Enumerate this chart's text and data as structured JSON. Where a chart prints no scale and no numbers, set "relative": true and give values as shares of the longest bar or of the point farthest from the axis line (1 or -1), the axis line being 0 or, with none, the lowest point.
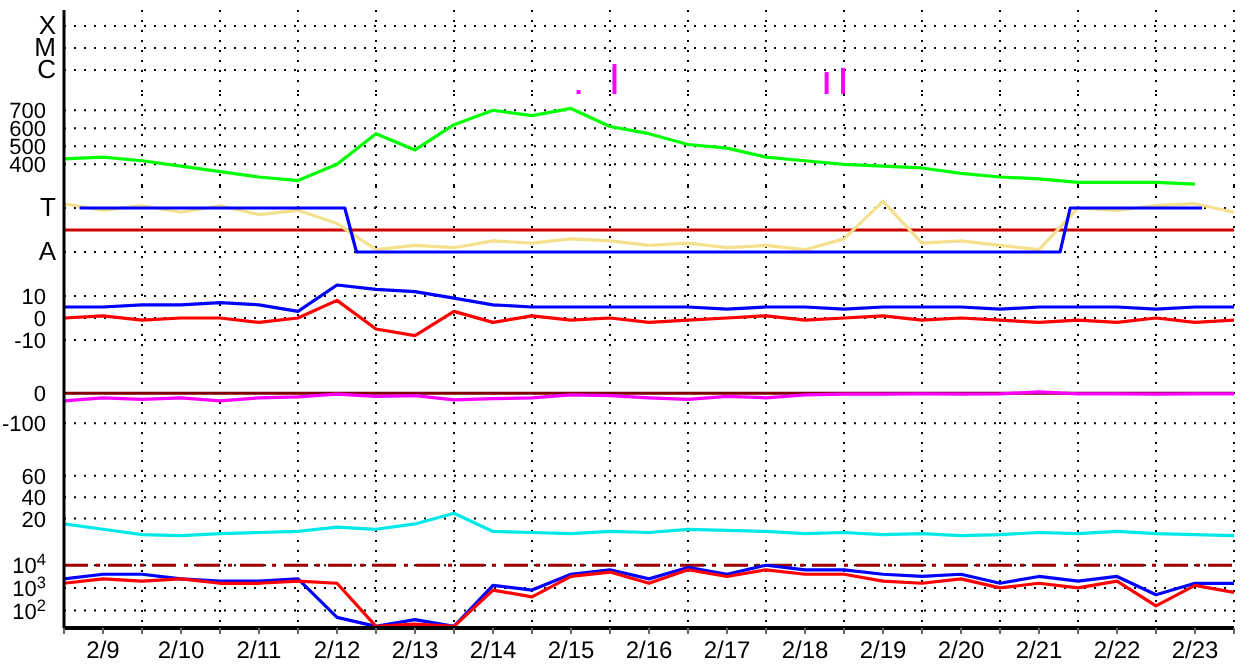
{
  "chart_data": [
    {
      "type": "bar",
      "relative": true,
      "annotations": [
        "X",
        "M",
        "C"
      ],
      "x": [
        "--02-15T14:24",
        "--02-16T01:26",
        "--02-18T18:43",
        "--02-18T23:46"
      ],
      "series": [
        {
          "color": "#ff00ff",
          "values": [
            0.13,
            1,
            0.73,
            0.87
          ]
        }
      ],
      "xlim": [
        "--02-09",
        "--02-24"
      ],
      "xticks": [
        {
          "value": "--02-09",
          "label": null
        },
        {
          "value": "--02-09T12:00",
          "label": "2/9"
        },
        {
          "value": "--02-10",
          "label": null
        },
        {
          "value": "--02-10T12:00",
          "label": "2/10"
        },
        {
          "value": "--02-11",
          "label": null
        },
        {
          "value": "--02-11T12:00",
          "label": "2/11"
        },
        {
          "value": "--02-12",
          "label": null
        },
        {
          "value": "--02-12T12:00",
          "label": "2/12"
        },
        {
          "value": "--02-13",
          "label": null
        },
        {
          "value": "--02-13T12:00",
          "label": "2/13"
        },
        {
          "value": "--02-14",
          "label": null
        },
        {
          "value": "--02-14T12:00",
          "label": "2/14"
        },
        {
          "value": "--02-15",
          "label": null
        },
        {
          "value": "--02-15T12:00",
          "label": "2/15"
        },
        {
          "value": "--02-16",
          "label": null
        },
        {
          "value": "--02-16T12:00",
          "label": "2/16"
        },
        {
          "value": "--02-17",
          "label": null
        },
        {
          "value": "--02-17T12:00",
          "label": "2/17"
        },
        {
          "value": "--02-18",
          "label": null
        },
        {
          "value": "--02-18T12:00",
          "label": "2/18"
        },
        {
          "value": "--02-19",
          "label": null
        },
        {
          "value": "--02-19T12:00",
          "label": "2/19"
        },
        {
          "value": "--02-20",
          "label": null
        },
        {
          "value": "--02-20T12:00",
          "label": "2/20"
        },
        {
          "value": "--02-21",
          "label": null
        },
        {
          "value": "--02-21T12:00",
          "label": "2/21"
        },
        {
          "value": "--02-22",
          "label": null
        },
        {
          "value": "--02-22T12:00",
          "label": "2/22"
        },
        {
          "value": "--02-23",
          "label": null
        },
        {
          "value": "--02-23T12:00",
          "label": "2/23"
        },
        {
          "value": "--02-24",
          "label": null
        }
      ],
      "grid": true,
      "tick_labels": "y"
    },
    {
      "type": "line",
      "x": [
        "--02-09",
        "--02-09T12:00",
        "--02-10",
        "--02-10T12:00",
        "--02-11",
        "--02-11T12:00",
        "--02-12",
        "--02-12T12:00",
        "--02-13",
        "--02-13T12:00",
        "--02-14",
        "--02-14T12:00",
        "--02-15",
        "--02-15T12:00",
        "--02-16",
        "--02-16T12:00",
        "--02-17",
        "--02-17T12:00",
        "--02-18",
        "--02-18T12:00",
        "--02-19",
        "--02-19T12:00",
        "--02-20",
        "--02-20T12:00",
        "--02-21",
        "--02-21T12:00",
        "--02-22",
        "--02-22T12:00",
        "--02-23",
        "--02-23T12:00"
      ],
      "series": [
        {
          "color": "#00ff00",
          "values": [
            430,
            440,
            420,
            390,
            360,
            330,
            310,
            400,
            570,
            480,
            620,
            700,
            670,
            710,
            610,
            570,
            510,
            490,
            440,
            420,
            400,
            390,
            380,
            350,
            330,
            320,
            300,
            300,
            300,
            290
          ]
        }
      ],
      "ylim": [
        280,
        790
      ],
      "yticks": [
        400,
        500,
        600,
        700
      ],
      "xlim": [
        "--02-09",
        "--02-24"
      ],
      "xticks": [
        {
          "value": "--02-09",
          "label": null
        },
        {
          "value": "--02-09T12:00",
          "label": "2/9"
        },
        {
          "value": "--02-10",
          "label": null
        },
        {
          "value": "--02-10T12:00",
          "label": "2/10"
        },
        {
          "value": "--02-11",
          "label": null
        },
        {
          "value": "--02-11T12:00",
          "label": "2/11"
        },
        {
          "value": "--02-12",
          "label": null
        },
        {
          "value": "--02-12T12:00",
          "label": "2/12"
        },
        {
          "value": "--02-13",
          "label": null
        },
        {
          "value": "--02-13T12:00",
          "label": "2/13"
        },
        {
          "value": "--02-14",
          "label": null
        },
        {
          "value": "--02-14T12:00",
          "label": "2/14"
        },
        {
          "value": "--02-15",
          "label": null
        },
        {
          "value": "--02-15T12:00",
          "label": "2/15"
        },
        {
          "value": "--02-16",
          "label": null
        },
        {
          "value": "--02-16T12:00",
          "label": "2/16"
        },
        {
          "value": "--02-17",
          "label": null
        },
        {
          "value": "--02-17T12:00",
          "label": "2/17"
        },
        {
          "value": "--02-18",
          "label": null
        },
        {
          "value": "--02-18T12:00",
          "label": "2/18"
        },
        {
          "value": "--02-19",
          "label": null
        },
        {
          "value": "--02-19T12:00",
          "label": "2/19"
        },
        {
          "value": "--02-20",
          "label": null
        },
        {
          "value": "--02-20T12:00",
          "label": "2/20"
        },
        {
          "value": "--02-21",
          "label": null
        },
        {
          "value": "--02-21T12:00",
          "label": "2/21"
        },
        {
          "value": "--02-22",
          "label": null
        },
        {
          "value": "--02-22T12:00",
          "label": "2/22"
        },
        {
          "value": "--02-23",
          "label": null
        },
        {
          "value": "--02-23T12:00",
          "label": "2/23"
        },
        {
          "value": "--02-24",
          "label": null
        }
      ],
      "grid": true,
      "tick_labels": "y"
    },
    {
      "type": "line",
      "relative": true,
      "annotations": [
        "T",
        "A"
      ],
      "x": [
        "--02-09",
        "--02-09T12:00",
        "--02-10",
        "--02-10T12:00",
        "--02-11",
        "--02-11T12:00",
        "--02-12",
        "--02-12T12:00",
        "--02-13",
        "--02-13T12:00",
        "--02-14",
        "--02-14T12:00",
        "--02-15",
        "--02-15T12:00",
        "--02-16",
        "--02-16T12:00",
        "--02-17",
        "--02-17T12:00",
        "--02-18",
        "--02-18T12:00",
        "--02-19",
        "--02-19T12:00",
        "--02-20",
        "--02-20T12:00",
        "--02-21",
        "--02-21T12:00",
        "--02-22",
        "--02-22T12:00",
        "--02-23",
        "--02-23T12:00",
        "--02-24"
      ],
      "series": [
        {
          "color": "#f5e08e",
          "values": [
            0.92,
            0.69,
            0.85,
            0.62,
            0.85,
            0.54,
            0.69,
            0.23,
            -0.69,
            -0.54,
            -0.62,
            -0.38,
            -0.46,
            -0.31,
            -0.38,
            -0.54,
            -0.46,
            -0.62,
            -0.54,
            -0.69,
            -0.31,
            1,
            -0.46,
            -0.38,
            -0.54,
            -0.69,
            0.77,
            0.69,
            0.85,
            0.92,
            0.62
          ]
        },
        {
          "color": "#0000ff",
          "x": [
            "--02-09T04:48",
            "--02-12T14:24",
            "--02-12T18:00",
            "--02-21T18:29",
            "--02-21T21:36",
            "--02-23T14:10"
          ],
          "values": [
            0.77,
            0.77,
            -0.77,
            -0.77,
            0.77,
            0.77
          ]
        }
      ],
      "ref_lines": [
        {
          "axis": "y",
          "value": 0,
          "color": "#cc0000"
        }
      ],
      "xlim": [
        "--02-09",
        "--02-24"
      ],
      "xticks": [
        {
          "value": "--02-09",
          "label": null
        },
        {
          "value": "--02-09T12:00",
          "label": "2/9"
        },
        {
          "value": "--02-10",
          "label": null
        },
        {
          "value": "--02-10T12:00",
          "label": "2/10"
        },
        {
          "value": "--02-11",
          "label": null
        },
        {
          "value": "--02-11T12:00",
          "label": "2/11"
        },
        {
          "value": "--02-12",
          "label": null
        },
        {
          "value": "--02-12T12:00",
          "label": "2/12"
        },
        {
          "value": "--02-13",
          "label": null
        },
        {
          "value": "--02-13T12:00",
          "label": "2/13"
        },
        {
          "value": "--02-14",
          "label": null
        },
        {
          "value": "--02-14T12:00",
          "label": "2/14"
        },
        {
          "value": "--02-15",
          "label": null
        },
        {
          "value": "--02-15T12:00",
          "label": "2/15"
        },
        {
          "value": "--02-16",
          "label": null
        },
        {
          "value": "--02-16T12:00",
          "label": "2/16"
        },
        {
          "value": "--02-17",
          "label": null
        },
        {
          "value": "--02-17T12:00",
          "label": "2/17"
        },
        {
          "value": "--02-18",
          "label": null
        },
        {
          "value": "--02-18T12:00",
          "label": "2/18"
        },
        {
          "value": "--02-19",
          "label": null
        },
        {
          "value": "--02-19T12:00",
          "label": "2/19"
        },
        {
          "value": "--02-20",
          "label": null
        },
        {
          "value": "--02-20T12:00",
          "label": "2/20"
        },
        {
          "value": "--02-21",
          "label": null
        },
        {
          "value": "--02-21T12:00",
          "label": "2/21"
        },
        {
          "value": "--02-22",
          "label": null
        },
        {
          "value": "--02-22T12:00",
          "label": "2/22"
        },
        {
          "value": "--02-23",
          "label": null
        },
        {
          "value": "--02-23T12:00",
          "label": "2/23"
        },
        {
          "value": "--02-24",
          "label": null
        }
      ],
      "grid": true,
      "tick_labels": "y"
    },
    {
      "type": "line",
      "x": [
        "--02-09",
        "--02-09T12:00",
        "--02-10",
        "--02-10T12:00",
        "--02-11",
        "--02-11T12:00",
        "--02-12",
        "--02-12T12:00",
        "--02-13",
        "--02-13T12:00",
        "--02-14",
        "--02-14T12:00",
        "--02-15",
        "--02-15T12:00",
        "--02-16",
        "--02-16T12:00",
        "--02-17",
        "--02-17T12:00",
        "--02-18",
        "--02-18T12:00",
        "--02-19",
        "--02-19T12:00",
        "--02-20",
        "--02-20T12:00",
        "--02-21",
        "--02-21T12:00",
        "--02-22",
        "--02-22T12:00",
        "--02-23",
        "--02-23T12:00",
        "--02-24"
      ],
      "series": [
        {
          "color": "#0000ff",
          "values": [
            5,
            5,
            6,
            6,
            7,
            6,
            3,
            15,
            13,
            12,
            9,
            6,
            5,
            5,
            5,
            5,
            5,
            4,
            5,
            5,
            4,
            5,
            5,
            5,
            4,
            5,
            5,
            5,
            4,
            5,
            5
          ]
        },
        {
          "color": "#ff0000",
          "values": [
            0,
            1,
            -1,
            0,
            0,
            -2,
            0,
            8,
            -5,
            -8,
            3,
            -2,
            1,
            -1,
            0,
            -2,
            -1,
            0,
            1,
            -1,
            0,
            1,
            -1,
            0,
            -1,
            -2,
            -1,
            -2,
            0,
            -2,
            -1
          ]
        }
      ],
      "ylim": [
        -20,
        20
      ],
      "yticks": [
        -10,
        0,
        10
      ],
      "xlim": [
        "--02-09",
        "--02-24"
      ],
      "xticks": [
        {
          "value": "--02-09",
          "label": null
        },
        {
          "value": "--02-09T12:00",
          "label": "2/9"
        },
        {
          "value": "--02-10",
          "label": null
        },
        {
          "value": "--02-10T12:00",
          "label": "2/10"
        },
        {
          "value": "--02-11",
          "label": null
        },
        {
          "value": "--02-11T12:00",
          "label": "2/11"
        },
        {
          "value": "--02-12",
          "label": null
        },
        {
          "value": "--02-12T12:00",
          "label": "2/12"
        },
        {
          "value": "--02-13",
          "label": null
        },
        {
          "value": "--02-13T12:00",
          "label": "2/13"
        },
        {
          "value": "--02-14",
          "label": null
        },
        {
          "value": "--02-14T12:00",
          "label": "2/14"
        },
        {
          "value": "--02-15",
          "label": null
        },
        {
          "value": "--02-15T12:00",
          "label": "2/15"
        },
        {
          "value": "--02-16",
          "label": null
        },
        {
          "value": "--02-16T12:00",
          "label": "2/16"
        },
        {
          "value": "--02-17",
          "label": null
        },
        {
          "value": "--02-17T12:00",
          "label": "2/17"
        },
        {
          "value": "--02-18",
          "label": null
        },
        {
          "value": "--02-18T12:00",
          "label": "2/18"
        },
        {
          "value": "--02-19",
          "label": null
        },
        {
          "value": "--02-19T12:00",
          "label": "2/19"
        },
        {
          "value": "--02-20",
          "label": null
        },
        {
          "value": "--02-20T12:00",
          "label": "2/20"
        },
        {
          "value": "--02-21",
          "label": null
        },
        {
          "value": "--02-21T12:00",
          "label": "2/21"
        },
        {
          "value": "--02-22",
          "label": null
        },
        {
          "value": "--02-22T12:00",
          "label": "2/22"
        },
        {
          "value": "--02-23",
          "label": null
        },
        {
          "value": "--02-23T12:00",
          "label": "2/23"
        },
        {
          "value": "--02-24",
          "label": null
        }
      ],
      "grid": true,
      "tick_labels": "y"
    },
    {
      "type": "line",
      "x": [
        "--02-09",
        "--02-09T12:00",
        "--02-10",
        "--02-10T12:00",
        "--02-11",
        "--02-11T12:00",
        "--02-12",
        "--02-12T12:00",
        "--02-13",
        "--02-13T12:00",
        "--02-14",
        "--02-14T12:00",
        "--02-15",
        "--02-15T12:00",
        "--02-16",
        "--02-16T12:00",
        "--02-17",
        "--02-17T12:00",
        "--02-18",
        "--02-18T12:00",
        "--02-19",
        "--02-19T12:00",
        "--02-20",
        "--02-20T12:00",
        "--02-21",
        "--02-21T12:00",
        "--02-22",
        "--02-22T12:00",
        "--02-23",
        "--02-23T12:00",
        "--02-24"
      ],
      "series": [
        {
          "color": "#ff00ff",
          "values": [
            -25,
            -15,
            -20,
            -15,
            -25,
            -15,
            -12,
            -3,
            -10,
            -8,
            -22,
            -18,
            -15,
            -5,
            -8,
            -15,
            -20,
            -10,
            -15,
            -5,
            -3,
            -3,
            -2,
            -3,
            -2,
            5,
            -2,
            -2,
            -3,
            -2,
            -2
          ]
        }
      ],
      "ylim": [
        -190,
        105
      ],
      "yticks": [
        -100,
        0
      ],
      "ref_lines": [
        {
          "axis": "y",
          "value": 0,
          "color": "#800000"
        }
      ],
      "xlim": [
        "--02-09",
        "--02-24"
      ],
      "xticks": [
        {
          "value": "--02-09",
          "label": null
        },
        {
          "value": "--02-09T12:00",
          "label": "2/9"
        },
        {
          "value": "--02-10",
          "label": null
        },
        {
          "value": "--02-10T12:00",
          "label": "2/10"
        },
        {
          "value": "--02-11",
          "label": null
        },
        {
          "value": "--02-11T12:00",
          "label": "2/11"
        },
        {
          "value": "--02-12",
          "label": null
        },
        {
          "value": "--02-12T12:00",
          "label": "2/12"
        },
        {
          "value": "--02-13",
          "label": null
        },
        {
          "value": "--02-13T12:00",
          "label": "2/13"
        },
        {
          "value": "--02-14",
          "label": null
        },
        {
          "value": "--02-14T12:00",
          "label": "2/14"
        },
        {
          "value": "--02-15",
          "label": null
        },
        {
          "value": "--02-15T12:00",
          "label": "2/15"
        },
        {
          "value": "--02-16",
          "label": null
        },
        {
          "value": "--02-16T12:00",
          "label": "2/16"
        },
        {
          "value": "--02-17",
          "label": null
        },
        {
          "value": "--02-17T12:00",
          "label": "2/17"
        },
        {
          "value": "--02-18",
          "label": null
        },
        {
          "value": "--02-18T12:00",
          "label": "2/18"
        },
        {
          "value": "--02-19",
          "label": null
        },
        {
          "value": "--02-19T12:00",
          "label": "2/19"
        },
        {
          "value": "--02-20",
          "label": null
        },
        {
          "value": "--02-20T12:00",
          "label": "2/20"
        },
        {
          "value": "--02-21",
          "label": null
        },
        {
          "value": "--02-21T12:00",
          "label": "2/21"
        },
        {
          "value": "--02-22",
          "label": null
        },
        {
          "value": "--02-22T12:00",
          "label": "2/22"
        },
        {
          "value": "--02-23",
          "label": null
        },
        {
          "value": "--02-23T12:00",
          "label": "2/23"
        },
        {
          "value": "--02-24",
          "label": null
        }
      ],
      "grid": true,
      "tick_labels": "y"
    },
    {
      "type": "line",
      "x": [
        "--02-09",
        "--02-09T12:00",
        "--02-10",
        "--02-10T12:00",
        "--02-11",
        "--02-11T12:00",
        "--02-12",
        "--02-12T12:00",
        "--02-13",
        "--02-13T12:00",
        "--02-14",
        "--02-14T12:00",
        "--02-15",
        "--02-15T12:00",
        "--02-16",
        "--02-16T12:00",
        "--02-17",
        "--02-17T12:00",
        "--02-18",
        "--02-18T12:00",
        "--02-19",
        "--02-19T12:00",
        "--02-20",
        "--02-20T12:00",
        "--02-21",
        "--02-21T12:00",
        "--02-22",
        "--02-22T12:00",
        "--02-23",
        "--02-23T12:00",
        "--02-24"
      ],
      "series": [
        {
          "color": "#00e8e8",
          "values": [
            15,
            10,
            5,
            4,
            6,
            7,
            8,
            12,
            10,
            15,
            25,
            8,
            7,
            6,
            8,
            7,
            10,
            9,
            8,
            6,
            7,
            5,
            6,
            4,
            5,
            7,
            6,
            8,
            6,
            5,
            4
          ]
        }
      ],
      "ylim": [
        0,
        84
      ],
      "yticks": [
        20,
        40,
        60
      ],
      "xlim": [
        "--02-09",
        "--02-24"
      ],
      "xticks": [
        {
          "value": "--02-09",
          "label": null
        },
        {
          "value": "--02-09T12:00",
          "label": "2/9"
        },
        {
          "value": "--02-10",
          "label": null
        },
        {
          "value": "--02-10T12:00",
          "label": "2/10"
        },
        {
          "value": "--02-11",
          "label": null
        },
        {
          "value": "--02-11T12:00",
          "label": "2/11"
        },
        {
          "value": "--02-12",
          "label": null
        },
        {
          "value": "--02-12T12:00",
          "label": "2/12"
        },
        {
          "value": "--02-13",
          "label": null
        },
        {
          "value": "--02-13T12:00",
          "label": "2/13"
        },
        {
          "value": "--02-14",
          "label": null
        },
        {
          "value": "--02-14T12:00",
          "label": "2/14"
        },
        {
          "value": "--02-15",
          "label": null
        },
        {
          "value": "--02-15T12:00",
          "label": "2/15"
        },
        {
          "value": "--02-16",
          "label": null
        },
        {
          "value": "--02-16T12:00",
          "label": "2/16"
        },
        {
          "value": "--02-17",
          "label": null
        },
        {
          "value": "--02-17T12:00",
          "label": "2/17"
        },
        {
          "value": "--02-18",
          "label": null
        },
        {
          "value": "--02-18T12:00",
          "label": "2/18"
        },
        {
          "value": "--02-19",
          "label": null
        },
        {
          "value": "--02-19T12:00",
          "label": "2/19"
        },
        {
          "value": "--02-20",
          "label": null
        },
        {
          "value": "--02-20T12:00",
          "label": "2/20"
        },
        {
          "value": "--02-21",
          "label": null
        },
        {
          "value": "--02-21T12:00",
          "label": "2/21"
        },
        {
          "value": "--02-22",
          "label": null
        },
        {
          "value": "--02-22T12:00",
          "label": "2/22"
        },
        {
          "value": "--02-23",
          "label": null
        },
        {
          "value": "--02-23T12:00",
          "label": "2/23"
        },
        {
          "value": "--02-24",
          "label": null
        }
      ],
      "grid": true,
      "tick_labels": "y"
    },
    {
      "type": "line",
      "x": [
        "--02-09",
        "--02-09T12:00",
        "--02-10",
        "--02-10T12:00",
        "--02-11",
        "--02-11T12:00",
        "--02-12",
        "--02-12T12:00",
        "--02-13",
        "--02-13T12:00",
        "--02-14",
        "--02-14T12:00",
        "--02-15",
        "--02-15T12:00",
        "--02-16",
        "--02-16T12:00",
        "--02-17",
        "--02-17T12:00",
        "--02-18",
        "--02-18T12:00",
        "--02-19",
        "--02-19T12:00",
        "--02-20",
        "--02-20T12:00",
        "--02-21",
        "--02-21T12:00",
        "--02-22",
        "--02-22T12:00",
        "--02-23",
        "--02-23T12:00",
        "--02-24"
      ],
      "series": [
        {
          "color": "#0000ff",
          "values": [
            2500,
            4000,
            4000,
            2500,
            2000,
            2000,
            2500,
            50,
            20,
            40,
            20,
            1300,
            800,
            4000,
            6300,
            2500,
            8000,
            4000,
            10000,
            6300,
            6300,
            4000,
            3200,
            4000,
            1600,
            3200,
            2000,
            3200,
            500,
            1600,
            1600
          ]
        },
        {
          "color": "#ff0000",
          "values": [
            1600,
            2500,
            2000,
            2500,
            1600,
            1600,
            2000,
            1600,
            20,
            25,
            20,
            800,
            400,
            3200,
            5000,
            1600,
            6300,
            3200,
            6300,
            4000,
            4000,
            2000,
            1600,
            2500,
            1000,
            1600,
            1000,
            2000,
            160,
            1300,
            630
          ]
        }
      ],
      "log": "y",
      "ylim": [
        17,
        130000
      ],
      "yticks": [
        {
          "value": 100,
          "label": "10$^{2}$"
        },
        {
          "value": 1000,
          "label": "10$^{3}$"
        },
        {
          "value": 10000,
          "label": "10$^{4}$"
        }
      ],
      "ref_lines": [
        {
          "axis": "y",
          "value": 10000,
          "color": "#a00000",
          "line_style": "dashed"
        }
      ],
      "xlim": [
        "--02-09",
        "--02-24"
      ],
      "xticks": [
        {
          "value": "--02-09",
          "label": null
        },
        {
          "value": "--02-09T12:00",
          "label": "2/9"
        },
        {
          "value": "--02-10",
          "label": null
        },
        {
          "value": "--02-10T12:00",
          "label": "2/10"
        },
        {
          "value": "--02-11",
          "label": null
        },
        {
          "value": "--02-11T12:00",
          "label": "2/11"
        },
        {
          "value": "--02-12",
          "label": null
        },
        {
          "value": "--02-12T12:00",
          "label": "2/12"
        },
        {
          "value": "--02-13",
          "label": null
        },
        {
          "value": "--02-13T12:00",
          "label": "2/13"
        },
        {
          "value": "--02-14",
          "label": null
        },
        {
          "value": "--02-14T12:00",
          "label": "2/14"
        },
        {
          "value": "--02-15",
          "label": null
        },
        {
          "value": "--02-15T12:00",
          "label": "2/15"
        },
        {
          "value": "--02-16",
          "label": null
        },
        {
          "value": "--02-16T12:00",
          "label": "2/16"
        },
        {
          "value": "--02-17",
          "label": null
        },
        {
          "value": "--02-17T12:00",
          "label": "2/17"
        },
        {
          "value": "--02-18",
          "label": null
        },
        {
          "value": "--02-18T12:00",
          "label": "2/18"
        },
        {
          "value": "--02-19",
          "label": null
        },
        {
          "value": "--02-19T12:00",
          "label": "2/19"
        },
        {
          "value": "--02-20",
          "label": null
        },
        {
          "value": "--02-20T12:00",
          "label": "2/20"
        },
        {
          "value": "--02-21",
          "label": null
        },
        {
          "value": "--02-21T12:00",
          "label": "2/21"
        },
        {
          "value": "--02-22",
          "label": null
        },
        {
          "value": "--02-22T12:00",
          "label": "2/22"
        },
        {
          "value": "--02-23",
          "label": null
        },
        {
          "value": "--02-23T12:00",
          "label": "2/23"
        },
        {
          "value": "--02-24",
          "label": null
        }
      ],
      "grid": true
    }
  ]
}
